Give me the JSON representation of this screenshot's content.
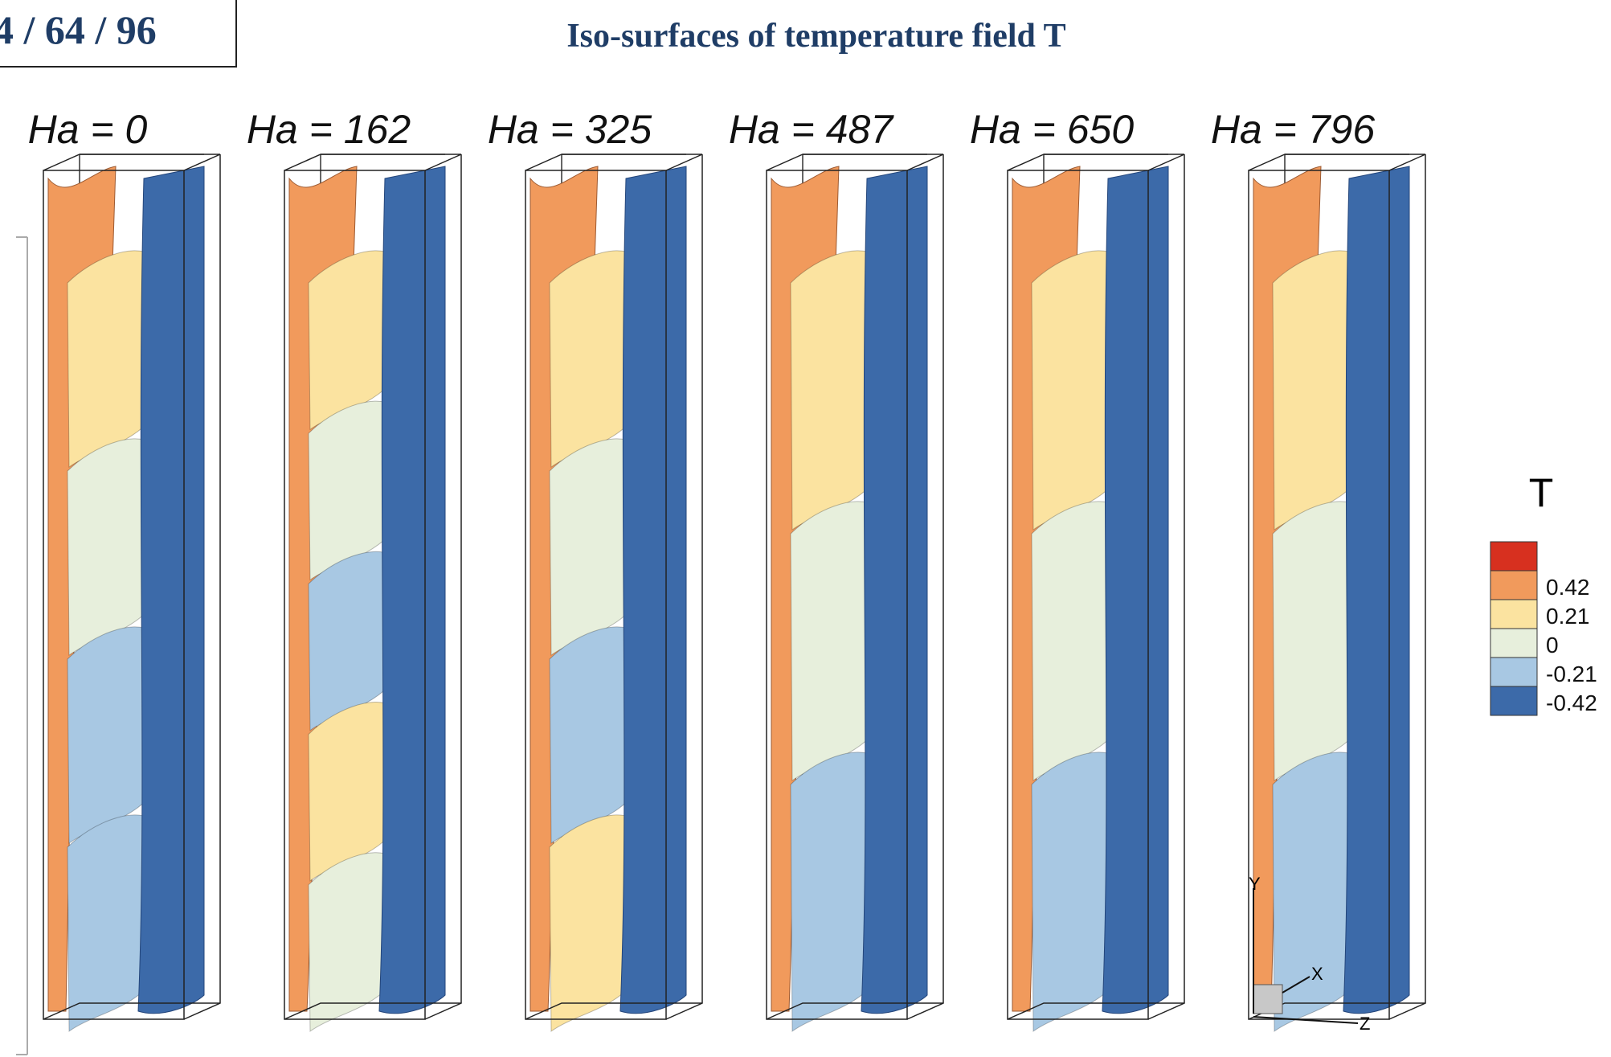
{
  "header": {
    "page_label": "4 / 64 / 96",
    "title": "Iso-surfaces of temperature field T"
  },
  "panels": [
    {
      "label": "Ha = 0"
    },
    {
      "label": "Ha = 162"
    },
    {
      "label": "Ha = 325"
    },
    {
      "label": "Ha = 487"
    },
    {
      "label": "Ha = 650"
    },
    {
      "label": "Ha = 796"
    }
  ],
  "axes_triad": {
    "y": "Y",
    "x": "X",
    "z": "Z"
  },
  "legend": {
    "title": "T",
    "swatches": [
      "#d7301f",
      "#f19a5c",
      "#fbe3a0",
      "#e7efdc",
      "#a8c8e3",
      "#3c6aa9"
    ],
    "labels": [
      "0.42",
      "0.21",
      "0",
      "-0.21",
      "-0.42"
    ]
  }
}
